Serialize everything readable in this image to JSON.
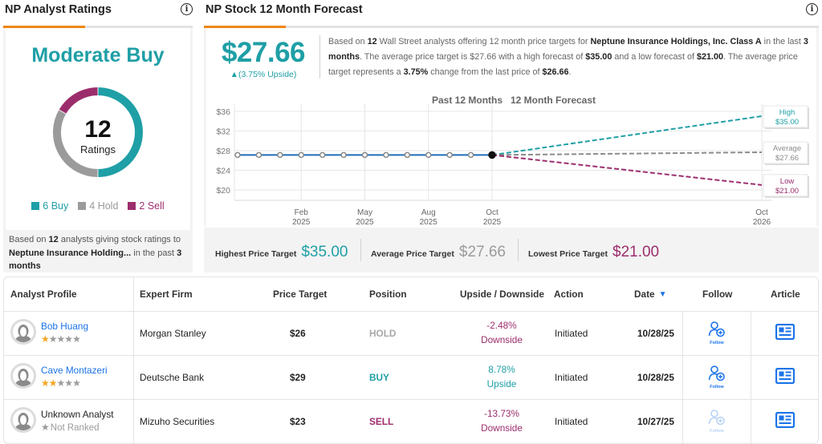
{
  "ratings_panel": {
    "title": "NP Analyst Ratings",
    "info_icon": "info-icon",
    "consensus": "Moderate Buy",
    "total": "12",
    "total_label": "Ratings",
    "breakdown": [
      {
        "label": "6 Buy",
        "count": 6,
        "color": "#1f9fa6"
      },
      {
        "label": "4 Hold",
        "count": 4,
        "color": "#9b9b9b"
      },
      {
        "label": "2 Sell",
        "count": 2,
        "color": "#9c2d6c"
      }
    ],
    "footer": {
      "prefix": "Based on ",
      "count": "12",
      "mid": " analysts giving stock ratings to ",
      "company": "Neptune Insurance Holding...",
      "suffix": " in the past ",
      "period": "3 months"
    }
  },
  "forecast_panel": {
    "title": "NP Stock 12 Month Forecast",
    "info_icon": "info-icon",
    "avg_price": "$27.66",
    "upside": "▲(3.75% Upside)",
    "summary": {
      "t1": "Based on ",
      "count": "12",
      "t2": " Wall Street analysts offering 12 month price targets for ",
      "company": "Neptune Insurance Holdings, Inc. Class A",
      "t3": " in the last ",
      "period": "3 months",
      "t4": ". The average price target is $27.66 with a high forecast of ",
      "high": "$35.00",
      "t5": " and a low forecast of ",
      "low": "$21.00",
      "t6": ". The average price target represents a ",
      "change": "3.75%",
      "t7": " change from the last price of ",
      "last": "$26.66",
      "t8": "."
    },
    "stats": {
      "highest_label": "Highest Price Target",
      "highest_value": "$35.00",
      "average_label": "Average Price Target",
      "average_value": "$27.66",
      "lowest_label": "Lowest Price Target",
      "lowest_value": "$21.00"
    }
  },
  "chart_data": {
    "type": "line",
    "legend_past": "Past 12 Months",
    "legend_forecast": "12 Month Forecast",
    "yticks": [
      "$36",
      "$32",
      "$28",
      "$24",
      "$20"
    ],
    "ytick_values": [
      36,
      32,
      28,
      24,
      20
    ],
    "ylim": [
      18,
      38
    ],
    "xticks": [
      {
        "month": "Feb",
        "year": "2025",
        "index": 3
      },
      {
        "month": "May",
        "year": "2025",
        "index": 6
      },
      {
        "month": "Aug",
        "year": "2025",
        "index": 9
      },
      {
        "month": "Oct",
        "year": "2025",
        "index": 12
      },
      {
        "month": "Oct",
        "year": "2026",
        "index": 24
      }
    ],
    "past_prices": [
      27.1,
      27.1,
      27.1,
      27.1,
      27.1,
      27.1,
      27.1,
      27.1,
      27.1,
      27.1,
      27.1,
      27.1,
      27.1
    ],
    "forecast": [
      {
        "label": "High",
        "value": 35.0,
        "text": "$35.00",
        "color": "#1f9fa6"
      },
      {
        "label": "Average",
        "value": 27.66,
        "text": "$27.66",
        "color": "#8c8c8c"
      },
      {
        "label": "Low",
        "value": 21.0,
        "text": "$21.00",
        "color": "#9c2d6c"
      }
    ],
    "line_color": "#1e6fb8"
  },
  "table": {
    "headers": [
      "Analyst Profile",
      "Expert Firm",
      "Price Target",
      "Position",
      "Upside / Downside",
      "Action",
      "Date",
      "Follow",
      "Article"
    ],
    "sort_icon": "sort-down-icon",
    "rows": [
      {
        "analyst": "Bob Huang",
        "stars": 1,
        "rank_text": "",
        "firm": "Morgan Stanley",
        "target": "$26",
        "position": "HOLD",
        "position_color": "#a8a8a8",
        "pct": "-2.48%",
        "dir": "Downside",
        "dir_color": "#9c2d6c",
        "action": "Initiated",
        "date": "10/28/25",
        "follow": "Follow",
        "follow_enabled": true
      },
      {
        "analyst": "Cave Montazeri",
        "stars": 2,
        "rank_text": "",
        "firm": "Deutsche Bank",
        "target": "$29",
        "position": "BUY",
        "position_color": "#1f9fa6",
        "pct": "8.78%",
        "dir": "Upside",
        "dir_color": "#1f9fa6",
        "action": "Initiated",
        "date": "10/28/25",
        "follow": "Follow",
        "follow_enabled": true
      },
      {
        "analyst": "Unknown Analyst",
        "stars": 0,
        "rank_text": "Not Ranked",
        "firm": "Mizuho Securities",
        "target": "$23",
        "position": "SELL",
        "position_color": "#9c2d6c",
        "pct": "-13.73%",
        "dir": "Downside",
        "dir_color": "#9c2d6c",
        "action": "Initiated",
        "date": "10/27/25",
        "follow": "Follow",
        "follow_enabled": false
      }
    ]
  }
}
